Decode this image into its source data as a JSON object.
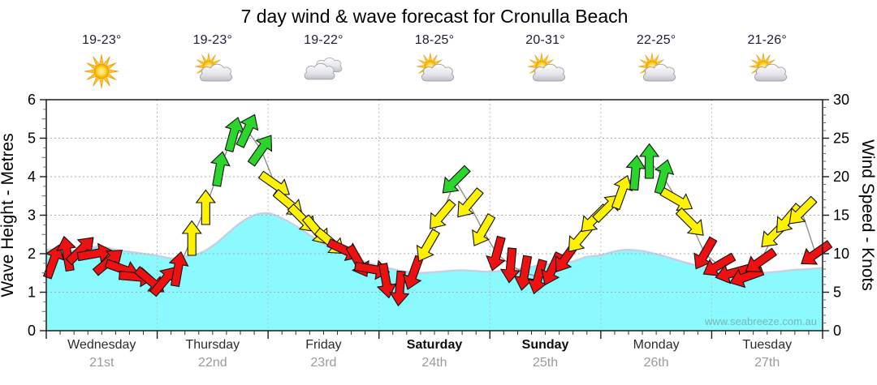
{
  "title": "7 day wind & wave forecast for Cronulla Beach",
  "watermark": "www.seabreeze.com.au",
  "days": [
    {
      "name": "Wednesday",
      "date": "21st",
      "temp": "19-23°",
      "icon": "sunny",
      "bold": false
    },
    {
      "name": "Thursday",
      "date": "22nd",
      "temp": "19-23°",
      "icon": "partly-cloudy",
      "bold": false
    },
    {
      "name": "Friday",
      "date": "23rd",
      "temp": "19-22°",
      "icon": "cloudy",
      "bold": false
    },
    {
      "name": "Saturday",
      "date": "24th",
      "temp": "18-25°",
      "icon": "partly-cloudy",
      "bold": true
    },
    {
      "name": "Sunday",
      "date": "25th",
      "temp": "20-31°",
      "icon": "partly-cloudy",
      "bold": true
    },
    {
      "name": "Monday",
      "date": "26th",
      "temp": "22-25°",
      "icon": "partly-cloudy",
      "bold": false
    },
    {
      "name": "Tuesday",
      "date": "27th",
      "temp": "21-26°",
      "icon": "partly-cloudy",
      "bold": false
    }
  ],
  "chart_data": {
    "type": "area",
    "title": "7 day wind & wave forecast for Cronulla Beach",
    "left_axis": {
      "label": "Wave Height - Metres",
      "min": 0,
      "max": 6,
      "major_ticks": [
        0,
        1,
        2,
        3,
        4,
        5,
        6
      ]
    },
    "right_axis": {
      "label": "Wind Speed - Knots",
      "min": 0,
      "max": 30,
      "major_ticks": [
        0,
        5,
        10,
        15,
        20,
        25,
        30
      ]
    },
    "x_axis": {
      "total_hours": 168,
      "minor_tick_hours": 3,
      "days": 7
    },
    "grid": {
      "horizontal_dotted_every_m": 1,
      "vertical_dashed_at_day_boundaries": true
    },
    "wave_height_m": {
      "step_hours": 3,
      "values": [
        2.1,
        2.12,
        2.08,
        2.15,
        2.18,
        2.1,
        2.05,
        2.0,
        1.95,
        1.88,
        1.92,
        2.0,
        2.2,
        2.5,
        2.8,
        3.0,
        3.05,
        2.92,
        2.72,
        2.48,
        2.25,
        2.05,
        1.9,
        1.78,
        1.68,
        1.6,
        1.53,
        1.5,
        1.52,
        1.55,
        1.57,
        1.55,
        1.53,
        1.56,
        1.6,
        1.66,
        1.72,
        1.76,
        1.8,
        1.92,
        1.96,
        2.06,
        2.1,
        2.07,
        1.99,
        1.89,
        1.78,
        1.69,
        1.62,
        1.57,
        1.52,
        1.5,
        1.51,
        1.54,
        1.58,
        1.6,
        1.63
      ]
    },
    "wind_arrows": {
      "format": "[hour, knots, direction_deg_arrow_points]",
      "points": [
        [
          1.5,
          9,
          20
        ],
        [
          4.5,
          10,
          350
        ],
        [
          7.5,
          10.5,
          45
        ],
        [
          10.5,
          10,
          80
        ],
        [
          13.5,
          9,
          50
        ],
        [
          16.5,
          8,
          110
        ],
        [
          19.5,
          7,
          95
        ],
        [
          22.5,
          6.5,
          130
        ],
        [
          25.5,
          6.5,
          40
        ],
        [
          28.5,
          8,
          10
        ],
        [
          31.5,
          12,
          0
        ],
        [
          34.5,
          16,
          0
        ],
        [
          37.5,
          21,
          10
        ],
        [
          40.5,
          25.5,
          15
        ],
        [
          43.5,
          26,
          25
        ],
        [
          46.5,
          23.5,
          35
        ],
        [
          49.5,
          19,
          125
        ],
        [
          52.5,
          16.5,
          130
        ],
        [
          55.5,
          14.5,
          135
        ],
        [
          58.5,
          13,
          140
        ],
        [
          61.5,
          11.5,
          130
        ],
        [
          64.5,
          10.5,
          115
        ],
        [
          67.5,
          9,
          150
        ],
        [
          70.5,
          8,
          100
        ],
        [
          73.5,
          6.5,
          170
        ],
        [
          76.5,
          5.5,
          185
        ],
        [
          79.5,
          7.5,
          200
        ],
        [
          82.5,
          11,
          210
        ],
        [
          85.5,
          15,
          220
        ],
        [
          88.5,
          19.5,
          225
        ],
        [
          91.5,
          16.5,
          220
        ],
        [
          94.5,
          13,
          210
        ],
        [
          97.5,
          10,
          195
        ],
        [
          100.5,
          8.5,
          185
        ],
        [
          103.5,
          7.5,
          190
        ],
        [
          106.5,
          7,
          195
        ],
        [
          109.5,
          8,
          205
        ],
        [
          112.5,
          9.5,
          215
        ],
        [
          115.5,
          12,
          220
        ],
        [
          118.5,
          14.5,
          225
        ],
        [
          121.5,
          16,
          45
        ],
        [
          124.5,
          18,
          20
        ],
        [
          127.5,
          20.5,
          5
        ],
        [
          130.5,
          22,
          0
        ],
        [
          133.5,
          20,
          15
        ],
        [
          136.5,
          17,
          120
        ],
        [
          139.5,
          14,
          135
        ],
        [
          142.5,
          10,
          210
        ],
        [
          145.5,
          8.5,
          240
        ],
        [
          148.5,
          7.5,
          255
        ],
        [
          151.5,
          7,
          250
        ],
        [
          154.5,
          9,
          235
        ],
        [
          157.5,
          12.5,
          225
        ],
        [
          160.5,
          14.5,
          220
        ],
        [
          163.5,
          15.5,
          225
        ],
        [
          166.5,
          10,
          235
        ]
      ]
    },
    "speed_color_thresholds_knots": {
      "yellow": 11,
      "green": 19.5
    },
    "colors": {
      "wave_fill": "#8AFAFF",
      "wave_line": "#C7D0E2",
      "arrow_red": "#EE1111",
      "arrow_yellow": "#FFF200",
      "arrow_green": "#2BD52B",
      "wind_line": "#8a8a8a"
    }
  }
}
